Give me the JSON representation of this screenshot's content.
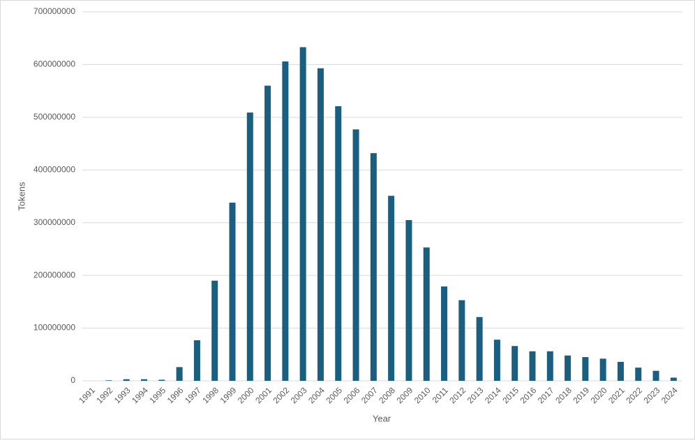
{
  "chart_data": {
    "type": "bar",
    "x_label": "Year",
    "y_label": "Tokens",
    "categories": [
      "1991",
      "1992",
      "1993",
      "1994",
      "1995",
      "1996",
      "1997",
      "1998",
      "1999",
      "2000",
      "2001",
      "2002",
      "2003",
      "2004",
      "2005",
      "2006",
      "2007",
      "2008",
      "2009",
      "2010",
      "2011",
      "2012",
      "2013",
      "2014",
      "2015",
      "2016",
      "2017",
      "2018",
      "2019",
      "2020",
      "2021",
      "2022",
      "2023",
      "2024"
    ],
    "values": [
      0,
      1000000,
      3000000,
      3000000,
      2000000,
      26000000,
      77000000,
      190000000,
      338000000,
      509000000,
      560000000,
      606000000,
      633000000,
      593000000,
      521000000,
      477000000,
      432000000,
      351000000,
      305000000,
      253000000,
      179000000,
      153000000,
      121000000,
      78000000,
      66000000,
      56000000,
      56000000,
      48000000,
      45000000,
      42000000,
      36000000,
      25000000,
      19000000,
      6000000
    ],
    "color": "#1a5e80",
    "ylim": [
      0,
      700000000
    ],
    "yticks": [
      0,
      100000000,
      200000000,
      300000000,
      400000000,
      500000000,
      600000000,
      700000000
    ],
    "grid": true
  }
}
